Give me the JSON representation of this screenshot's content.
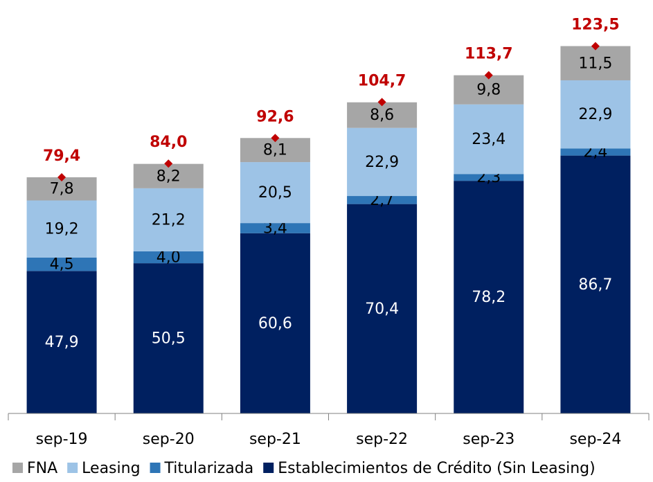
{
  "chart_data": {
    "type": "stacked_bar",
    "categories": [
      "sep-19",
      "sep-20",
      "sep-21",
      "sep-22",
      "sep-23",
      "sep-24"
    ],
    "series": [
      {
        "name": "Establecimientos de Crédito (Sin Leasing)",
        "color": "#002060",
        "values": [
          47.9,
          50.5,
          60.6,
          70.4,
          78.2,
          86.7
        ],
        "value_labels": [
          "47,9",
          "50,5",
          "60,6",
          "70,4",
          "78,2",
          "86,7"
        ]
      },
      {
        "name": "Titularizada",
        "color": "#2e75b6",
        "values": [
          4.5,
          4.0,
          3.4,
          2.7,
          2.3,
          2.4
        ],
        "value_labels": [
          "4,5",
          "4,0",
          "3,4",
          "2,7",
          "2,3",
          "2,4"
        ]
      },
      {
        "name": "Leasing",
        "color": "#9dc3e6",
        "values": [
          19.2,
          21.2,
          20.5,
          22.9,
          23.4,
          22.9
        ],
        "value_labels": [
          "19,2",
          "21,2",
          "20,5",
          "22,9",
          "23,4",
          "22,9"
        ]
      },
      {
        "name": "FNA",
        "color": "#a6a6a6",
        "values": [
          7.8,
          8.2,
          8.1,
          8.6,
          9.8,
          11.5
        ],
        "value_labels": [
          "7,8",
          "8,2",
          "8,1",
          "8,6",
          "9,8",
          "11,5"
        ]
      }
    ],
    "totals": {
      "color": "#c00000",
      "values": [
        79.4,
        84.0,
        92.6,
        104.7,
        113.7,
        123.5
      ],
      "value_labels": [
        "79,4",
        "84,0",
        "92,6",
        "104,7",
        "113,7",
        "123,5"
      ]
    },
    "ylim": [
      0,
      139
    ],
    "legend": "bottom"
  }
}
